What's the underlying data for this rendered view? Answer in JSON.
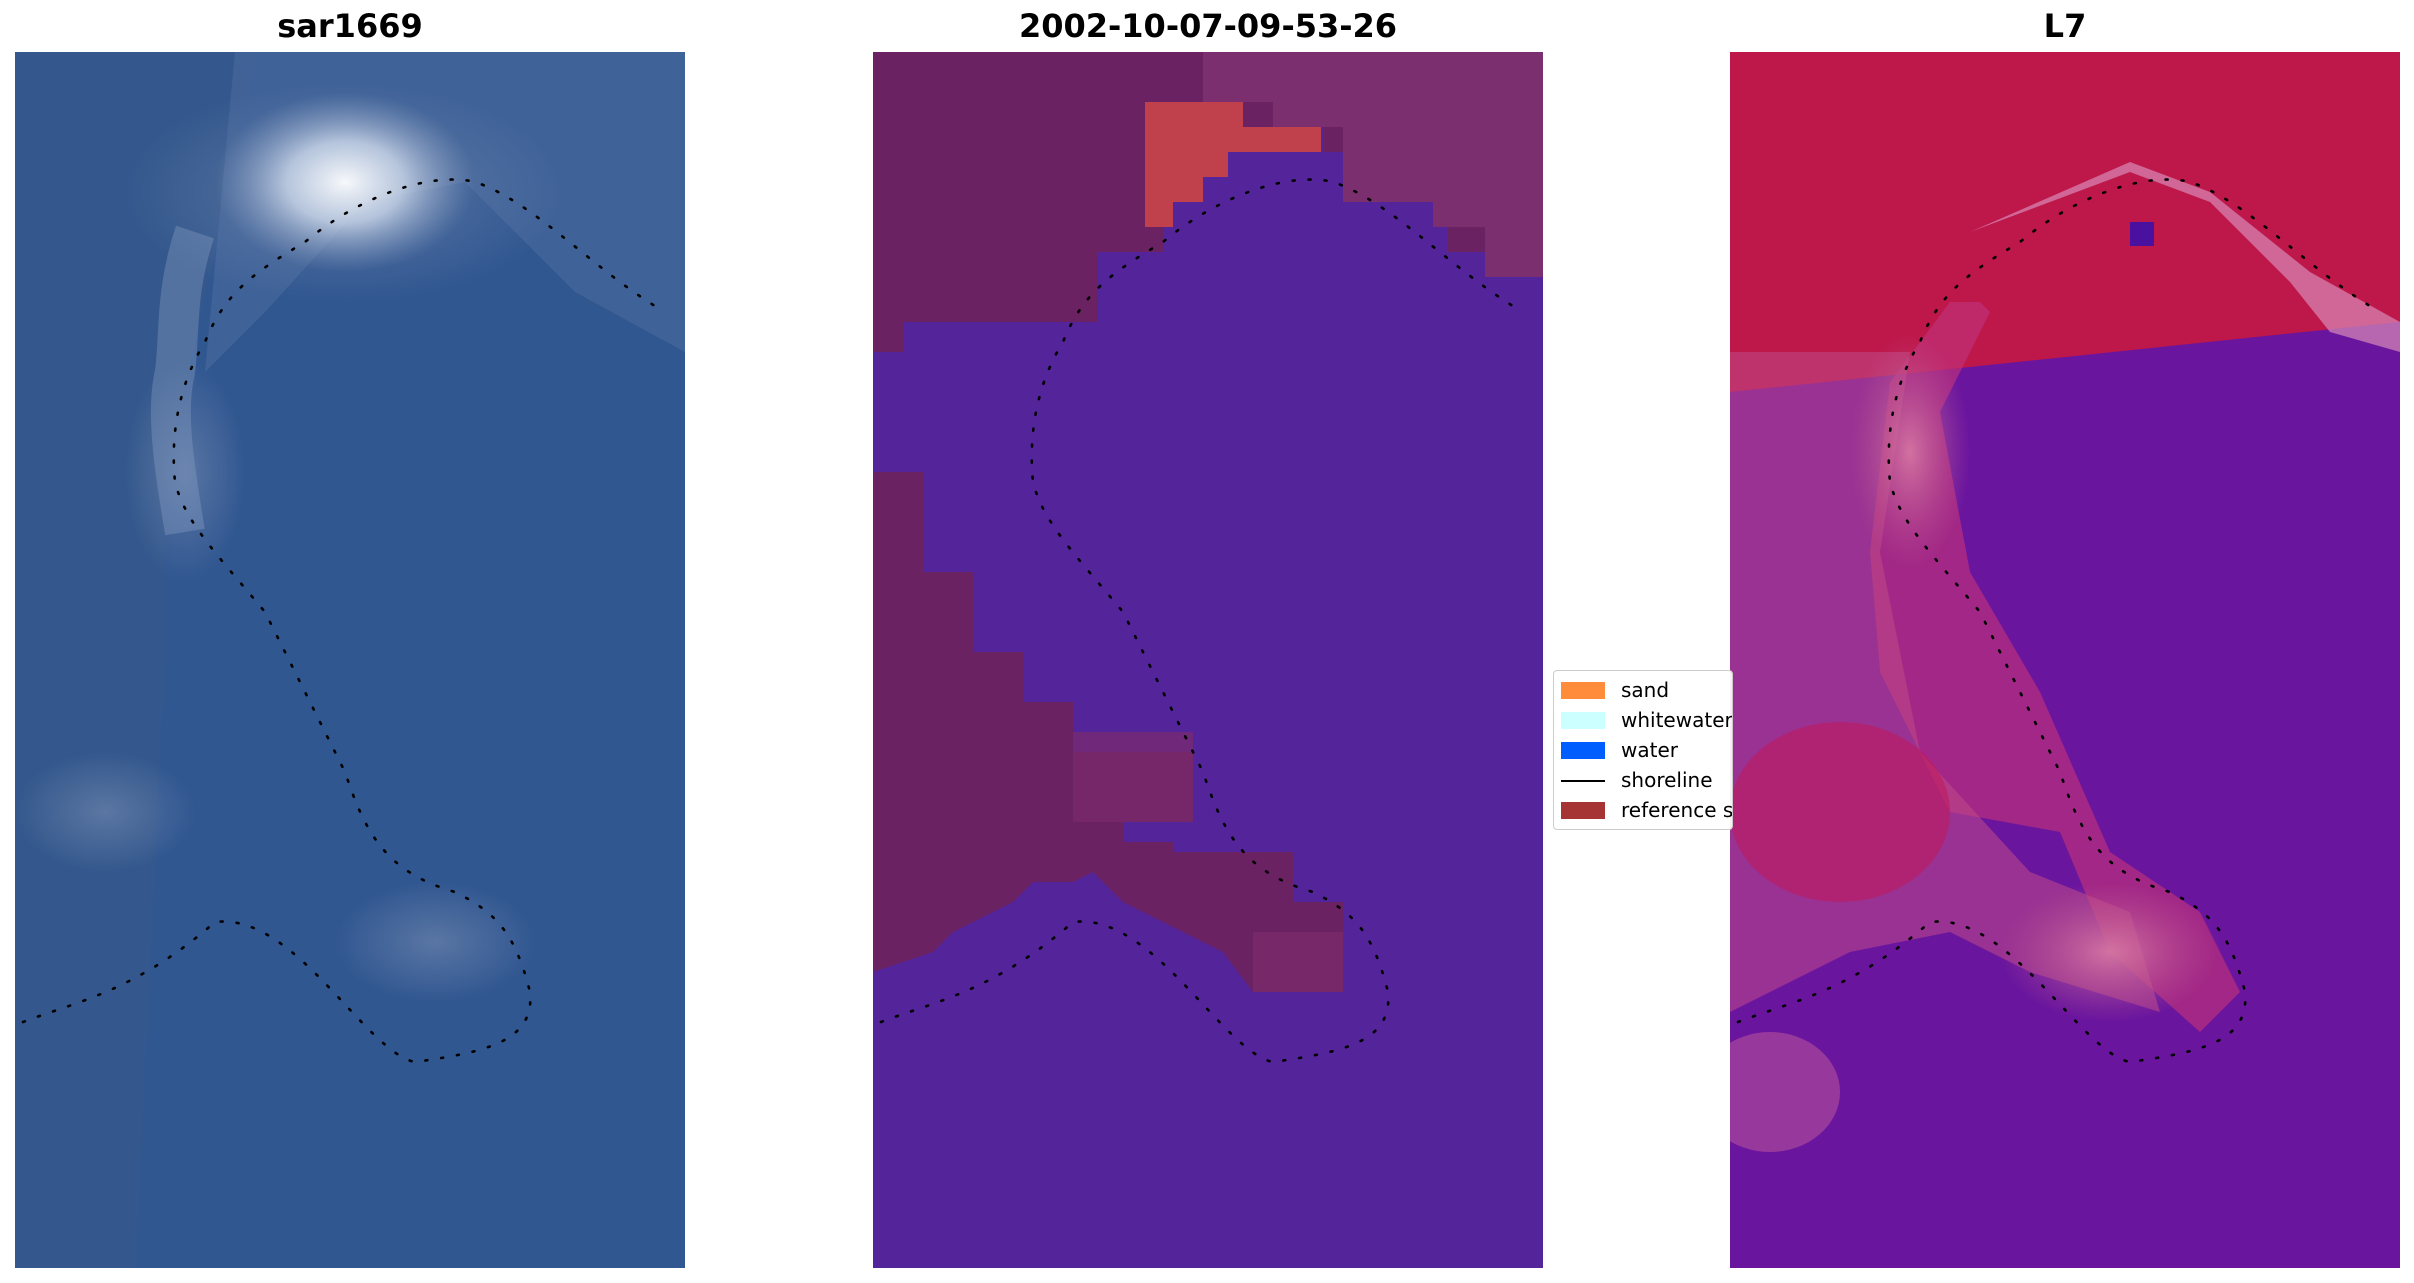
{
  "panels": [
    {
      "title": "sar1669",
      "image": "rgb-satellite-image"
    },
    {
      "title": "2002-10-07-09-53-26",
      "image": "classified-image"
    },
    {
      "title": "L7",
      "image": "water-index-image"
    }
  ],
  "legend": {
    "items": [
      {
        "label": "sand",
        "color": "#ff8c3a",
        "kind": "patch"
      },
      {
        "label": "whitewater",
        "color": "#ccffff",
        "kind": "patch"
      },
      {
        "label": "water",
        "color": "#005eff",
        "kind": "patch"
      },
      {
        "label": "shoreline",
        "color": "#000000",
        "kind": "line"
      },
      {
        "label": "reference shoreline",
        "color": "#a63434",
        "kind": "patch"
      }
    ]
  },
  "colors": {
    "rgb_background": "#2f5590",
    "classified_land": "#6a2262",
    "classified_water": "#54259a",
    "classified_sand_highlight": "#c0404c",
    "index_high": "#c0113a",
    "index_low": "#6a159e"
  }
}
